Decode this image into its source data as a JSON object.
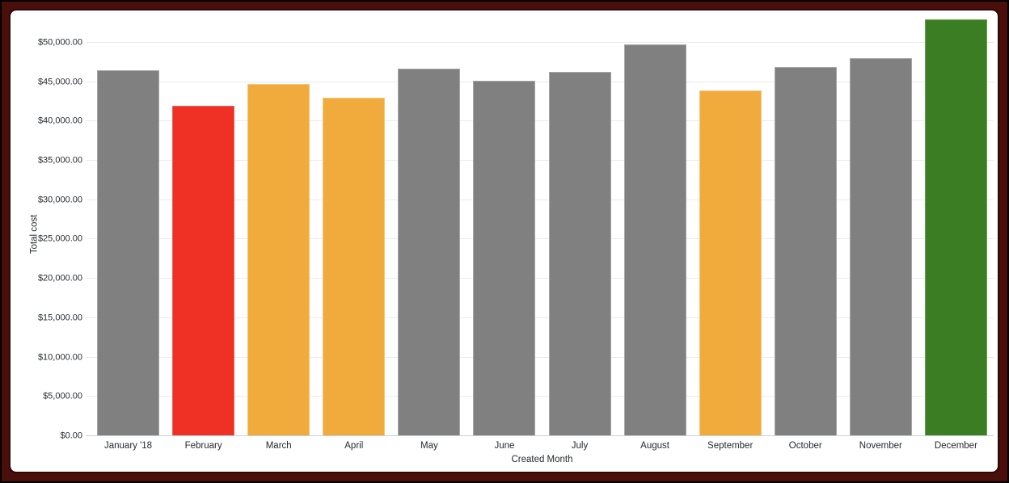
{
  "frame": {
    "outer_border_color": "#000000",
    "border_color": "#4a0e0b",
    "card_background": "#ffffff"
  },
  "colors": {
    "grid_line": "#ececec",
    "axis_line": "#c9d0d6",
    "tick_text": "#262c31",
    "bar_default": "#808080",
    "bar_low": "#ee3124",
    "bar_warn": "#f0ab3c",
    "bar_high": "#3a7d22"
  },
  "chart_data": {
    "type": "bar",
    "title": "",
    "xlabel": "Created Month",
    "ylabel": "Total cost",
    "categories": [
      "January '18",
      "February",
      "March",
      "April",
      "May",
      "June",
      "July",
      "August",
      "September",
      "October",
      "November",
      "December"
    ],
    "values": [
      46500,
      42000,
      44700,
      43000,
      46700,
      45200,
      46300,
      49800,
      43900,
      46900,
      48000,
      53000
    ],
    "bar_colors": [
      "#808080",
      "#ee3124",
      "#f0ab3c",
      "#f0ab3c",
      "#808080",
      "#808080",
      "#808080",
      "#808080",
      "#f0ab3c",
      "#808080",
      "#808080",
      "#3a7d22"
    ],
    "bar_strokes": [
      "#a6a6a6",
      "#f46252",
      "#f6c77b",
      "#f6c77b",
      "#a6a6a6",
      "#a6a6a6",
      "#a6a6a6",
      "#a6a6a6",
      "#f6c77b",
      "#a6a6a6",
      "#a6a6a6",
      "#68a344"
    ],
    "y_ticks": [
      {
        "value": 0,
        "label": "$0.00"
      },
      {
        "value": 5000,
        "label": "$5,000.00"
      },
      {
        "value": 10000,
        "label": "$10,000.00"
      },
      {
        "value": 15000,
        "label": "$15,000.00"
      },
      {
        "value": 20000,
        "label": "$20,000.00"
      },
      {
        "value": 25000,
        "label": "$25,000.00"
      },
      {
        "value": 30000,
        "label": "$30,000.00"
      },
      {
        "value": 35000,
        "label": "$35,000.00"
      },
      {
        "value": 40000,
        "label": "$40,000.00"
      },
      {
        "value": 45000,
        "label": "$45,000.00"
      },
      {
        "value": 50000,
        "label": "$50,000.00"
      }
    ],
    "ylim": [
      0,
      53060
    ],
    "grid": "horizontal",
    "legend": "none"
  }
}
